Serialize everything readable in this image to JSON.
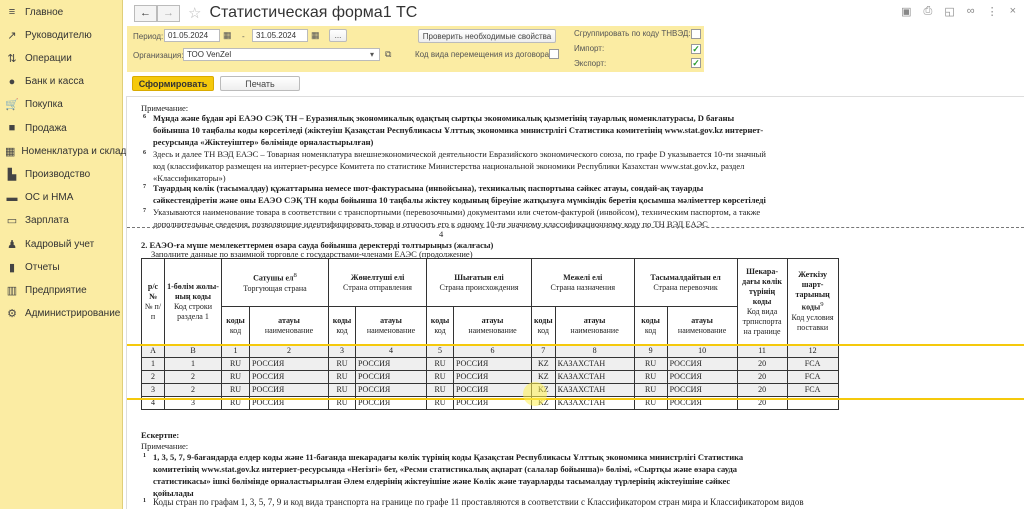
{
  "sidebar": {
    "items": [
      {
        "label": "Главное",
        "icon": "menu-icon",
        "glyph": "≡"
      },
      {
        "label": "Руководителю",
        "icon": "trend-icon",
        "glyph": "↗"
      },
      {
        "label": "Операции",
        "icon": "operations-icon",
        "glyph": "⇅"
      },
      {
        "label": "Банк и касса",
        "icon": "bank-icon",
        "glyph": "●"
      },
      {
        "label": "Покупка",
        "icon": "cart-icon",
        "glyph": "🛒"
      },
      {
        "label": "Продажа",
        "icon": "bag-icon",
        "glyph": "■"
      },
      {
        "label": "Номенклатура и склад",
        "icon": "grid-icon",
        "glyph": "▦"
      },
      {
        "label": "Производство",
        "icon": "factory-icon",
        "glyph": "▙"
      },
      {
        "label": "ОС и НМА",
        "icon": "truck-icon",
        "glyph": "▬"
      },
      {
        "label": "Зарплата",
        "icon": "card-icon",
        "glyph": "▭"
      },
      {
        "label": "Кадровый учет",
        "icon": "people-icon",
        "glyph": "♟"
      },
      {
        "label": "Отчеты",
        "icon": "chart-icon",
        "glyph": "▮"
      },
      {
        "label": "Предприятие",
        "icon": "building-icon",
        "glyph": "▥"
      },
      {
        "label": "Администрирование",
        "icon": "gear-icon",
        "glyph": "⚙"
      }
    ]
  },
  "header": {
    "title": "Статистическая форма1 ТС",
    "back": "←",
    "forward": "→"
  },
  "filters": {
    "period_label": "Период:",
    "date_from": "01.05.2024",
    "date_to": "31.05.2024",
    "dash": "-",
    "more": "...",
    "org_label": "Организация:",
    "org_value": "ТОО VenZel",
    "check_btn": "Проверить необходимые свойства",
    "movement_label": "Код вида перемещения из договора:",
    "group_label": "Сгруппировать по коду ТНВЭД:",
    "import_label": "Импорт:",
    "export_label": "Экспорт:",
    "group_checked": false,
    "movement_checked": false,
    "import_checked": true,
    "export_checked": true
  },
  "actions": {
    "generate": "Сформировать",
    "print": "Печать"
  },
  "report": {
    "note_kz": "Ескертпе:",
    "note_ru": "Примечание:",
    "n6kz": [
      "Мұнда және бұдан әрі ЕАЭО СЭҚ ТН – Еуразиялық экономикалық одақтың сыртқы экономикалық қызметінің тауарлық номенклатурасы, D бағаны",
      "бойынша 10 таңбалы коды көрсетіледі (жіктеуіш Қазақстан Республикасы Ұлттық экономика министрлігі Статистика комитетінің www.stat.gov.kz интернет-",
      "ресурсында «Жіктеуіштер» бөлімінде орналастырылған)"
    ],
    "n6ru": [
      "Здесь и далее ТН ВЭД ЕАЭС – Товарная номенклатура внешнеэкономической деятельности Евразийского экономического союза, по графе D указывается 10-ти значный",
      "код (классификатор размещен на интернет-ресурсе Комитета по статистике Министерства национальной экономики Республики Казахстан www.stat.gov.kz, раздел",
      "«Классификаторы»)"
    ],
    "n7kz": [
      "Тауардың көлік (тасымалдау) құжаттарына немесе шот-фактурасына (инвойсына), техникалық паспортына сәйкес атауы, сондай-ақ тауарды",
      "сәйкестендіретін және оны ЕАЭО СЭҚ ТН коды бойынша 10 таңбалы жіктеу кодының біреуіне жатқызуға мүмкіндік беретін қосымша мәліметтер көрсетіледі"
    ],
    "n7ru": [
      "Указываются наименование товара в соответствии с транспортными (перевозочными) документами или счетом-фактурой (инвойсом), техническим паспортом, а также",
      "дополнительные сведения, позволяющие идентифицировать товар и относить его к одному 10-ти значному классификационному коду по ТН ВЭД ЕАЭС"
    ],
    "sup6": "6",
    "sup7": "7",
    "sup8": "8",
    "page_number": "4",
    "section_kz": "2. ЕАЭО-ға мүше мемлекеттермен өзара сауда бойынша деректерді толтырыңыз (жалғасы)",
    "section_ru": "Заполните данные по взаимной торговле с государствами-членами ЕАЭС (продолжение)",
    "table": {
      "h_num": "р/с №",
      "h_num_ru": "№ п/п",
      "h_line_kz": "1-бөлім жолы-ның коды",
      "h_line_ru": "Код строки раздела 1",
      "groups": [
        {
          "kz": "Сатушы ел",
          "ru": "Торгующая страна",
          "sup": "8"
        },
        {
          "kz": "Жөнелтуші елі",
          "ru": "Страна отправления"
        },
        {
          "kz": "Шығатын елі",
          "ru": "Страна происхождения"
        },
        {
          "kz": "Межелі елі",
          "ru": "Страна назначения"
        },
        {
          "kz": "Тасымалдайтын ел",
          "ru": "Страна перевозчик"
        }
      ],
      "code_kz": "коды",
      "code_ru": "код",
      "name_kz": "атауы",
      "name_ru": "наименование",
      "h_transport_kz": "Шекара-дағы көлік түрінің коды",
      "h_transport_ru": "Код вида трпнспорта на границе",
      "h_terms_kz": "Жеткізу шарт-тарының коды",
      "h_terms_ru": "Код условия поставки",
      "sup9": "9",
      "col_index": [
        "А",
        "В",
        "1",
        "2",
        "3",
        "4",
        "5",
        "6",
        "7",
        "8",
        "9",
        "10",
        "11",
        "12"
      ],
      "rows": [
        [
          "1",
          "1",
          "RU",
          "РОССИЯ",
          "RU",
          "РОССИЯ",
          "RU",
          "РОССИЯ",
          "KZ",
          "КАЗАХСТАН",
          "RU",
          "РОССИЯ",
          "20",
          "FCA"
        ],
        [
          "2",
          "2",
          "RU",
          "РОССИЯ",
          "RU",
          "РОССИЯ",
          "RU",
          "РОССИЯ",
          "KZ",
          "КАЗАХСТАН",
          "RU",
          "РОССИЯ",
          "20",
          "FCA"
        ],
        [
          "3",
          "2",
          "RU",
          "РОССИЯ",
          "RU",
          "РОССИЯ",
          "RU",
          "РОССИЯ",
          "KZ",
          "КАЗАХСТАН",
          "RU",
          "РОССИЯ",
          "20",
          "FCA"
        ],
        [
          "4",
          "3",
          "RU",
          "РОССИЯ",
          "RU",
          "РОССИЯ",
          "RU",
          "РОССИЯ",
          "KZ",
          "КАЗАХСТАН",
          "RU",
          "РОССИЯ",
          "20",
          ""
        ]
      ]
    },
    "n2kz": [
      "1, 3, 5, 7, 9-бағандарда елдер коды және 11-бағанда шекарадағы көлік түрінің коды Қазақстан Республикасы Ұлттық экономика министрлігі Статистика",
      "комитетінің www.stat.gov.kz интернет-ресурсында «Негізгі» бет, «Ресми статистикалық ақпарат (салалар бойынша)» бөлімі, «Сыртқы және өзара сауда",
      "статистикасы» ішкі бөлімінде орналастырылған Әлем елдерінің жіктеуішіне және Көлік және тауарларды тасымалдау түрлерінің жіктеуішіне сәйкес",
      "қойылады"
    ],
    "n2ru": "Коды стран по графам 1, 3, 5, 7, 9 и код вида транспорта на границе по графе 11 проставляются в соответствии с Классификатором стран мира и Классификатором видов",
    "sup1": "1"
  }
}
